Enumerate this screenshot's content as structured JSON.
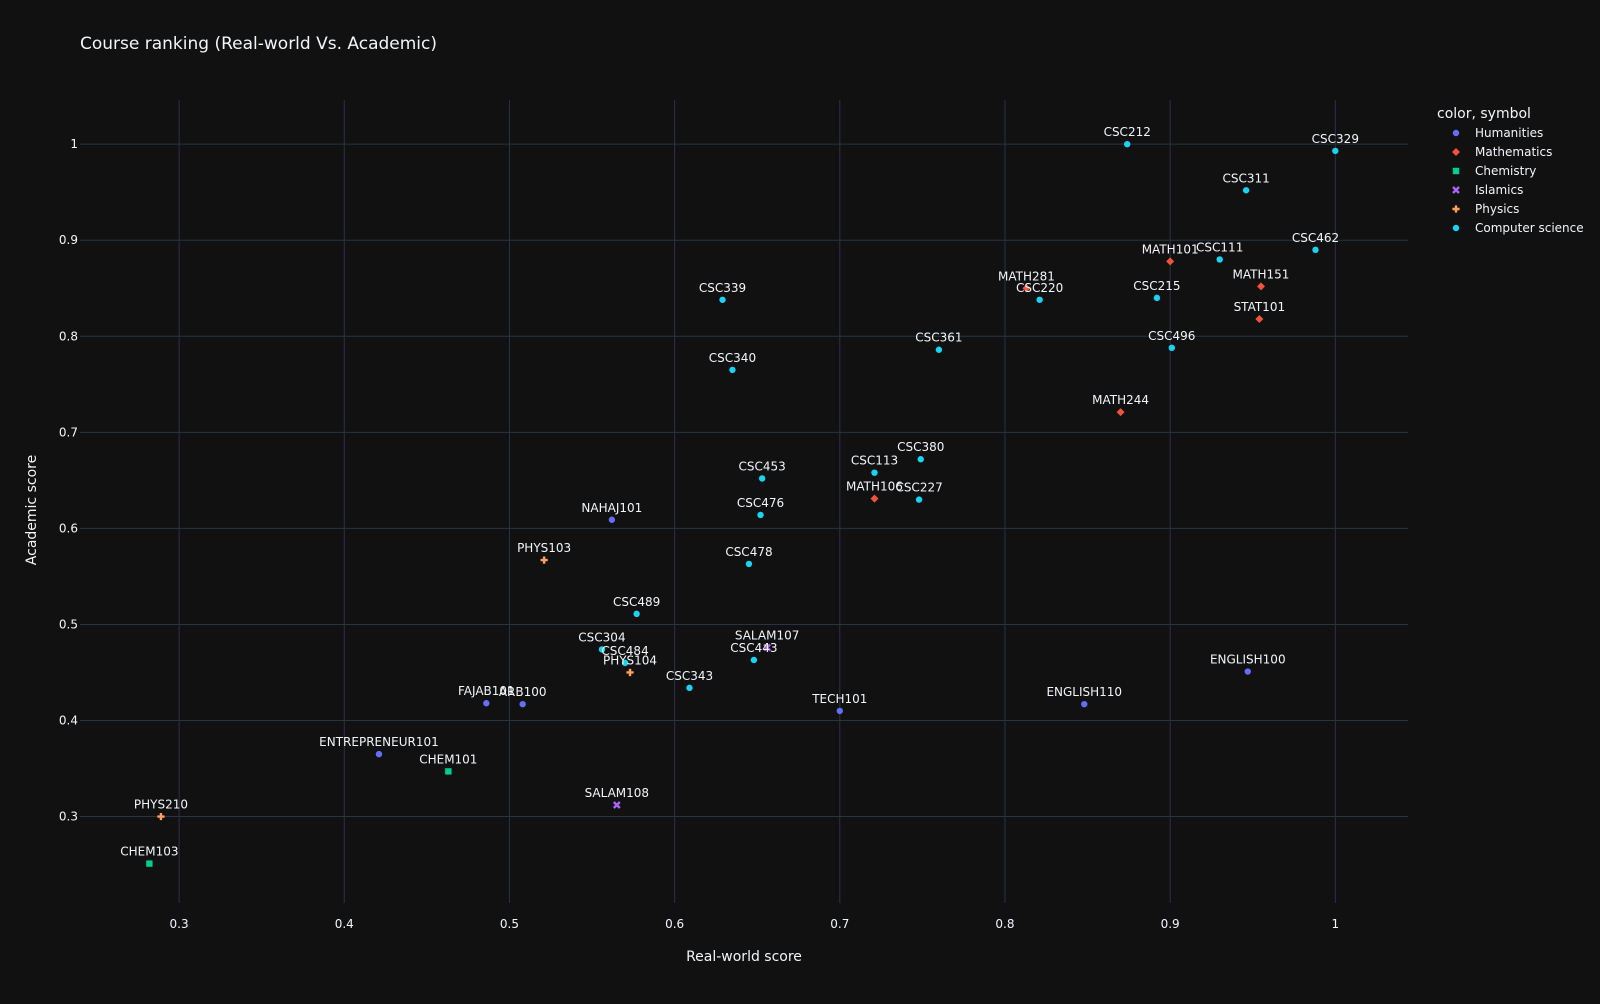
{
  "chart_data": {
    "type": "scatter",
    "title": "Course ranking (Real-world Vs. Academic)",
    "xlabel": "Real-world score",
    "ylabel": "Academic score",
    "xlim": [
      0.24,
      1.044
    ],
    "ylim": [
      0.21,
      1.046
    ],
    "xticks": [
      0.3,
      0.4,
      0.5,
      0.6,
      0.7,
      0.8,
      0.9,
      1
    ],
    "xtick_labels": [
      "0.3",
      "0.4",
      "0.5",
      "0.6",
      "0.7",
      "0.8",
      "0.9",
      "1"
    ],
    "yticks": [
      0.3,
      0.4,
      0.5,
      0.6,
      0.7,
      0.8,
      0.9,
      1
    ],
    "ytick_labels": [
      "0.3",
      "0.4",
      "0.5",
      "0.6",
      "0.7",
      "0.8",
      "0.9",
      "1"
    ],
    "grid": true,
    "legend_title": "color, symbol",
    "legend_position": "top-right",
    "series": [
      {
        "name": "Humanities",
        "color": "#636efa",
        "symbol": "circle",
        "points": [
          {
            "label": "NAHAJ101",
            "x": 0.562,
            "y": 0.609
          },
          {
            "label": "FAJAB101",
            "x": 0.486,
            "y": 0.418
          },
          {
            "label": "ARB100",
            "x": 0.508,
            "y": 0.417
          },
          {
            "label": "TECH101",
            "x": 0.7,
            "y": 0.41
          },
          {
            "label": "ENGLISH110",
            "x": 0.848,
            "y": 0.417
          },
          {
            "label": "ENGLISH100",
            "x": 0.947,
            "y": 0.451
          },
          {
            "label": "ENTREPRENEUR101",
            "x": 0.421,
            "y": 0.365
          }
        ]
      },
      {
        "name": "Mathematics",
        "color": "#EF553B",
        "symbol": "diamond",
        "points": [
          {
            "label": "MATH101",
            "x": 0.9,
            "y": 0.878
          },
          {
            "label": "MATH151",
            "x": 0.955,
            "y": 0.852
          },
          {
            "label": "STAT101",
            "x": 0.954,
            "y": 0.818
          },
          {
            "label": "MATH281",
            "x": 0.813,
            "y": 0.85
          },
          {
            "label": "MATH244",
            "x": 0.87,
            "y": 0.721
          },
          {
            "label": "MATH106",
            "x": 0.721,
            "y": 0.631
          }
        ]
      },
      {
        "name": "Chemistry",
        "color": "#00cc96",
        "symbol": "square",
        "points": [
          {
            "label": "CHEM101",
            "x": 0.463,
            "y": 0.347
          },
          {
            "label": "CHEM103",
            "x": 0.282,
            "y": 0.251
          }
        ]
      },
      {
        "name": "Islamics",
        "color": "#ab63fa",
        "symbol": "x",
        "points": [
          {
            "label": "SALAM108",
            "x": 0.565,
            "y": 0.312
          },
          {
            "label": "SALAM107",
            "x": 0.656,
            "y": 0.476
          }
        ]
      },
      {
        "name": "Physics",
        "color": "#FFA15A",
        "symbol": "cross",
        "points": [
          {
            "label": "PHYS103",
            "x": 0.521,
            "y": 0.567
          },
          {
            "label": "PHYS104",
            "x": 0.573,
            "y": 0.45
          },
          {
            "label": "PHYS210",
            "x": 0.289,
            "y": 0.3
          }
        ]
      },
      {
        "name": "Computer science",
        "color": "#19d3f3",
        "symbol": "circle",
        "points": [
          {
            "label": "CSC212",
            "x": 0.874,
            "y": 1.0
          },
          {
            "label": "CSC329",
            "x": 1.0,
            "y": 0.993
          },
          {
            "label": "CSC311",
            "x": 0.946,
            "y": 0.952
          },
          {
            "label": "CSC462",
            "x": 0.988,
            "y": 0.89
          },
          {
            "label": "CSC111",
            "x": 0.93,
            "y": 0.88
          },
          {
            "label": "CSC215",
            "x": 0.892,
            "y": 0.84
          },
          {
            "label": "CSC220",
            "x": 0.821,
            "y": 0.838
          },
          {
            "label": "CSC339",
            "x": 0.629,
            "y": 0.838
          },
          {
            "label": "CSC496",
            "x": 0.901,
            "y": 0.788
          },
          {
            "label": "CSC361",
            "x": 0.76,
            "y": 0.786
          },
          {
            "label": "CSC340",
            "x": 0.635,
            "y": 0.765
          },
          {
            "label": "CSC380",
            "x": 0.749,
            "y": 0.672
          },
          {
            "label": "CSC113",
            "x": 0.721,
            "y": 0.658
          },
          {
            "label": "CSC453",
            "x": 0.653,
            "y": 0.652
          },
          {
            "label": "CSC227",
            "x": 0.748,
            "y": 0.63
          },
          {
            "label": "CSC476",
            "x": 0.652,
            "y": 0.614
          },
          {
            "label": "CSC478",
            "x": 0.645,
            "y": 0.563
          },
          {
            "label": "CSC489",
            "x": 0.577,
            "y": 0.511
          },
          {
            "label": "CSC304",
            "x": 0.556,
            "y": 0.474
          },
          {
            "label": "CSC484",
            "x": 0.57,
            "y": 0.46
          },
          {
            "label": "CSC443",
            "x": 0.648,
            "y": 0.463
          },
          {
            "label": "CSC343",
            "x": 0.609,
            "y": 0.434
          }
        ]
      }
    ]
  }
}
